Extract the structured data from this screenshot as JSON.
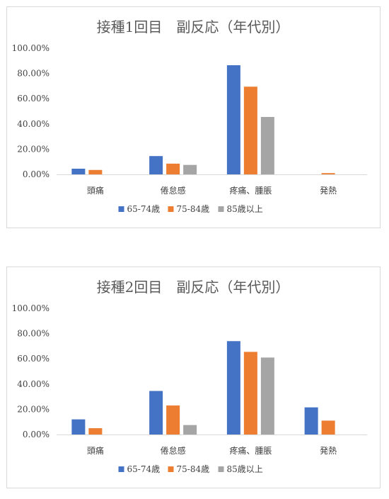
{
  "colors": {
    "s1": "#4472c4",
    "s2": "#ed7d31",
    "s3": "#a5a5a5",
    "axis": "#d9d9d9"
  },
  "chart_data": [
    {
      "type": "bar",
      "title": "接種1回目　副反応（年代別）",
      "categories": [
        "頭痛",
        "倦怠感",
        "疼痛、腫脹",
        "発熱"
      ],
      "yticks": [
        "0.00%",
        "20.00%",
        "40.00%",
        "60.00%",
        "80.00%",
        "100.00%"
      ],
      "ylim": [
        0,
        100
      ],
      "legend": "bottom",
      "grid": false,
      "series": [
        {
          "name": "65-74歳",
          "values": [
            4.5,
            14.5,
            86.5,
            0
          ]
        },
        {
          "name": "75-84歳",
          "values": [
            3.5,
            8.5,
            69.5,
            1.0
          ]
        },
        {
          "name": "85歳以上",
          "values": [
            0,
            7.5,
            45.5,
            0
          ]
        }
      ]
    },
    {
      "type": "bar",
      "title": "接種2回目　副反応（年代別）",
      "categories": [
        "頭痛",
        "倦怠感",
        "疼痛、腫脹",
        "発熱"
      ],
      "yticks": [
        "0.00%",
        "20.00%",
        "40.00%",
        "60.00%",
        "80.00%",
        "100.00%"
      ],
      "ylim": [
        0,
        100
      ],
      "legend": "bottom",
      "grid": false,
      "series": [
        {
          "name": "65-74歳",
          "values": [
            12.0,
            34.5,
            74.0,
            21.5
          ]
        },
        {
          "name": "75-84歳",
          "values": [
            5.0,
            23.0,
            65.5,
            11.0
          ]
        },
        {
          "name": "85歳以上",
          "values": [
            0,
            7.5,
            61.0,
            0
          ]
        }
      ]
    }
  ]
}
